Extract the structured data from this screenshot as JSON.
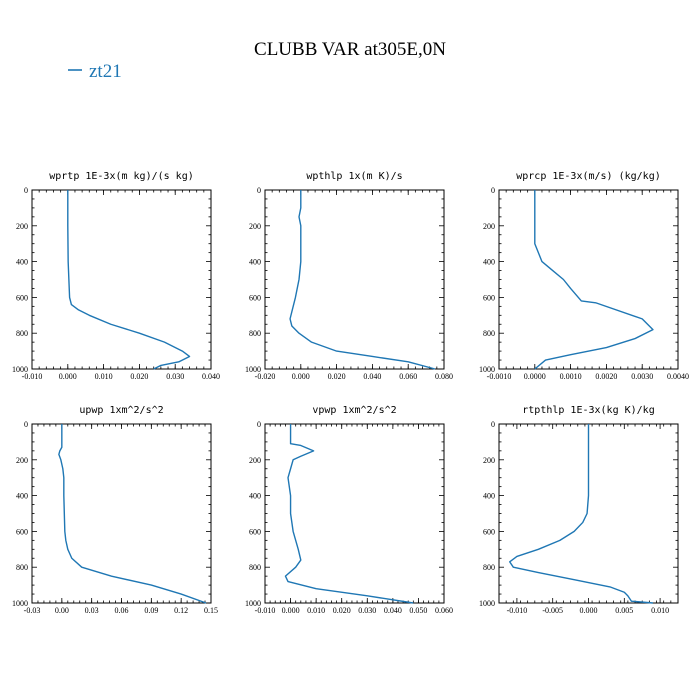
{
  "figure": {
    "title": "CLUBB VAR at305E,0N",
    "legend": [
      {
        "label": "zt21",
        "color": "#1f77b4"
      }
    ]
  },
  "series_color": "#1f77b4",
  "chart_data": [
    {
      "type": "line",
      "title": "wprtp  1E-3x(m kg)/(s kg)",
      "series_name": "zt21",
      "xlim": [
        -0.01,
        0.04
      ],
      "ylim": [
        1000,
        0
      ],
      "x_ticks": [
        "-0.010",
        "0.000",
        "0.010",
        "0.020",
        "0.030",
        "0.040"
      ],
      "y_ticks": [
        "0",
        "200",
        "400",
        "600",
        "800",
        "1000"
      ],
      "x": [
        0.0,
        0.0,
        0.0001,
        0.0003,
        0.0005,
        0.001,
        0.003,
        0.006,
        0.012,
        0.02,
        0.027,
        0.032,
        0.034,
        0.031,
        0.026,
        0.024
      ],
      "y": [
        0,
        200,
        400,
        500,
        600,
        640,
        670,
        700,
        750,
        800,
        850,
        900,
        930,
        960,
        980,
        1000
      ]
    },
    {
      "type": "line",
      "title": "wpthlp  1x(m K)/s",
      "series_name": "zt21",
      "xlim": [
        -0.02,
        0.08
      ],
      "ylim": [
        1000,
        0
      ],
      "x_ticks": [
        "-0.020",
        "0.000",
        "0.020",
        "0.040",
        "0.060",
        "0.080"
      ],
      "y_ticks": [
        "0",
        "200",
        "400",
        "600",
        "800",
        "1000"
      ],
      "x": [
        0.0,
        0.0,
        -0.001,
        0.0,
        0.0,
        -0.001,
        -0.003,
        -0.005,
        -0.006,
        -0.005,
        -0.001,
        0.006,
        0.02,
        0.04,
        0.06,
        0.075
      ],
      "y": [
        0,
        100,
        150,
        200,
        400,
        500,
        600,
        680,
        720,
        760,
        800,
        850,
        900,
        930,
        960,
        1000
      ]
    },
    {
      "type": "line",
      "title": "wprcp  1E-3x(m/s) (kg/kg)",
      "series_name": "zt21",
      "xlim": [
        -0.001,
        0.004
      ],
      "ylim": [
        1000,
        0
      ],
      "x_ticks": [
        "-0.0010",
        "0.0000",
        "0.0010",
        "0.0020",
        "0.0030",
        "0.0040"
      ],
      "y_ticks": [
        "0",
        "200",
        "400",
        "600",
        "800",
        "1000"
      ],
      "x": [
        0.0,
        0.0,
        0.0002,
        0.0005,
        0.0008,
        0.001,
        0.0013,
        0.0017,
        0.003,
        0.0033,
        0.0028,
        0.002,
        0.001,
        0.0003,
        0.0
      ],
      "y": [
        0,
        300,
        400,
        450,
        500,
        550,
        620,
        630,
        720,
        780,
        830,
        880,
        920,
        950,
        1000
      ]
    },
    {
      "type": "line",
      "title": "upwp  1xm^2/s^2",
      "series_name": "zt21",
      "xlim": [
        -0.03,
        0.15
      ],
      "ylim": [
        1000,
        0
      ],
      "x_ticks": [
        "-0.03",
        "0.00",
        "0.03",
        "0.06",
        "0.09",
        "0.12",
        "0.15"
      ],
      "y_ticks": [
        "0",
        "200",
        "400",
        "600",
        "800",
        "1000"
      ],
      "x": [
        0.0,
        0.0,
        0.0,
        -0.002,
        -0.003,
        -0.001,
        0.001,
        0.002,
        0.002,
        0.003,
        0.004,
        0.006,
        0.01,
        0.02,
        0.05,
        0.09,
        0.12,
        0.145
      ],
      "y": [
        0,
        100,
        130,
        150,
        170,
        200,
        250,
        300,
        400,
        600,
        650,
        700,
        750,
        800,
        850,
        900,
        950,
        1000
      ]
    },
    {
      "type": "line",
      "title": "vpwp  1xm^2/s^2",
      "series_name": "zt21",
      "xlim": [
        -0.01,
        0.06
      ],
      "ylim": [
        1000,
        0
      ],
      "x_ticks": [
        "-0.010",
        "0.000",
        "0.010",
        "0.020",
        "0.030",
        "0.040",
        "0.050",
        "0.060"
      ],
      "y_ticks": [
        "0",
        "200",
        "400",
        "600",
        "800",
        "1000"
      ],
      "x": [
        0.0,
        0.0,
        0.0,
        0.004,
        0.009,
        0.004,
        0.001,
        0.0,
        -0.001,
        0.0,
        0.0,
        0.001,
        0.003,
        0.004,
        0.002,
        -0.002,
        -0.001,
        0.01,
        0.03,
        0.048
      ],
      "y": [
        0,
        100,
        110,
        120,
        150,
        180,
        200,
        250,
        300,
        400,
        500,
        600,
        700,
        760,
        800,
        850,
        880,
        920,
        960,
        1000
      ]
    },
    {
      "type": "line",
      "title": "rtpthlp  1E-3x(kg K)/kg",
      "series_name": "zt21",
      "xlim": [
        -0.0125,
        0.0125
      ],
      "ylim": [
        1000,
        0
      ],
      "x_ticks": [
        "-0.010",
        "-0.005",
        "0.000",
        "0.005",
        "0.010"
      ],
      "y_ticks": [
        "0",
        "200",
        "400",
        "600",
        "800",
        "1000"
      ],
      "x": [
        0.0,
        0.0,
        -0.0002,
        -0.0008,
        -0.002,
        -0.004,
        -0.007,
        -0.01,
        -0.011,
        -0.0105,
        -0.007,
        -0.002,
        0.003,
        0.005,
        0.0055,
        0.006,
        0.009
      ],
      "y": [
        0,
        400,
        500,
        550,
        600,
        650,
        700,
        740,
        770,
        800,
        830,
        870,
        910,
        940,
        960,
        990,
        1000
      ]
    }
  ]
}
